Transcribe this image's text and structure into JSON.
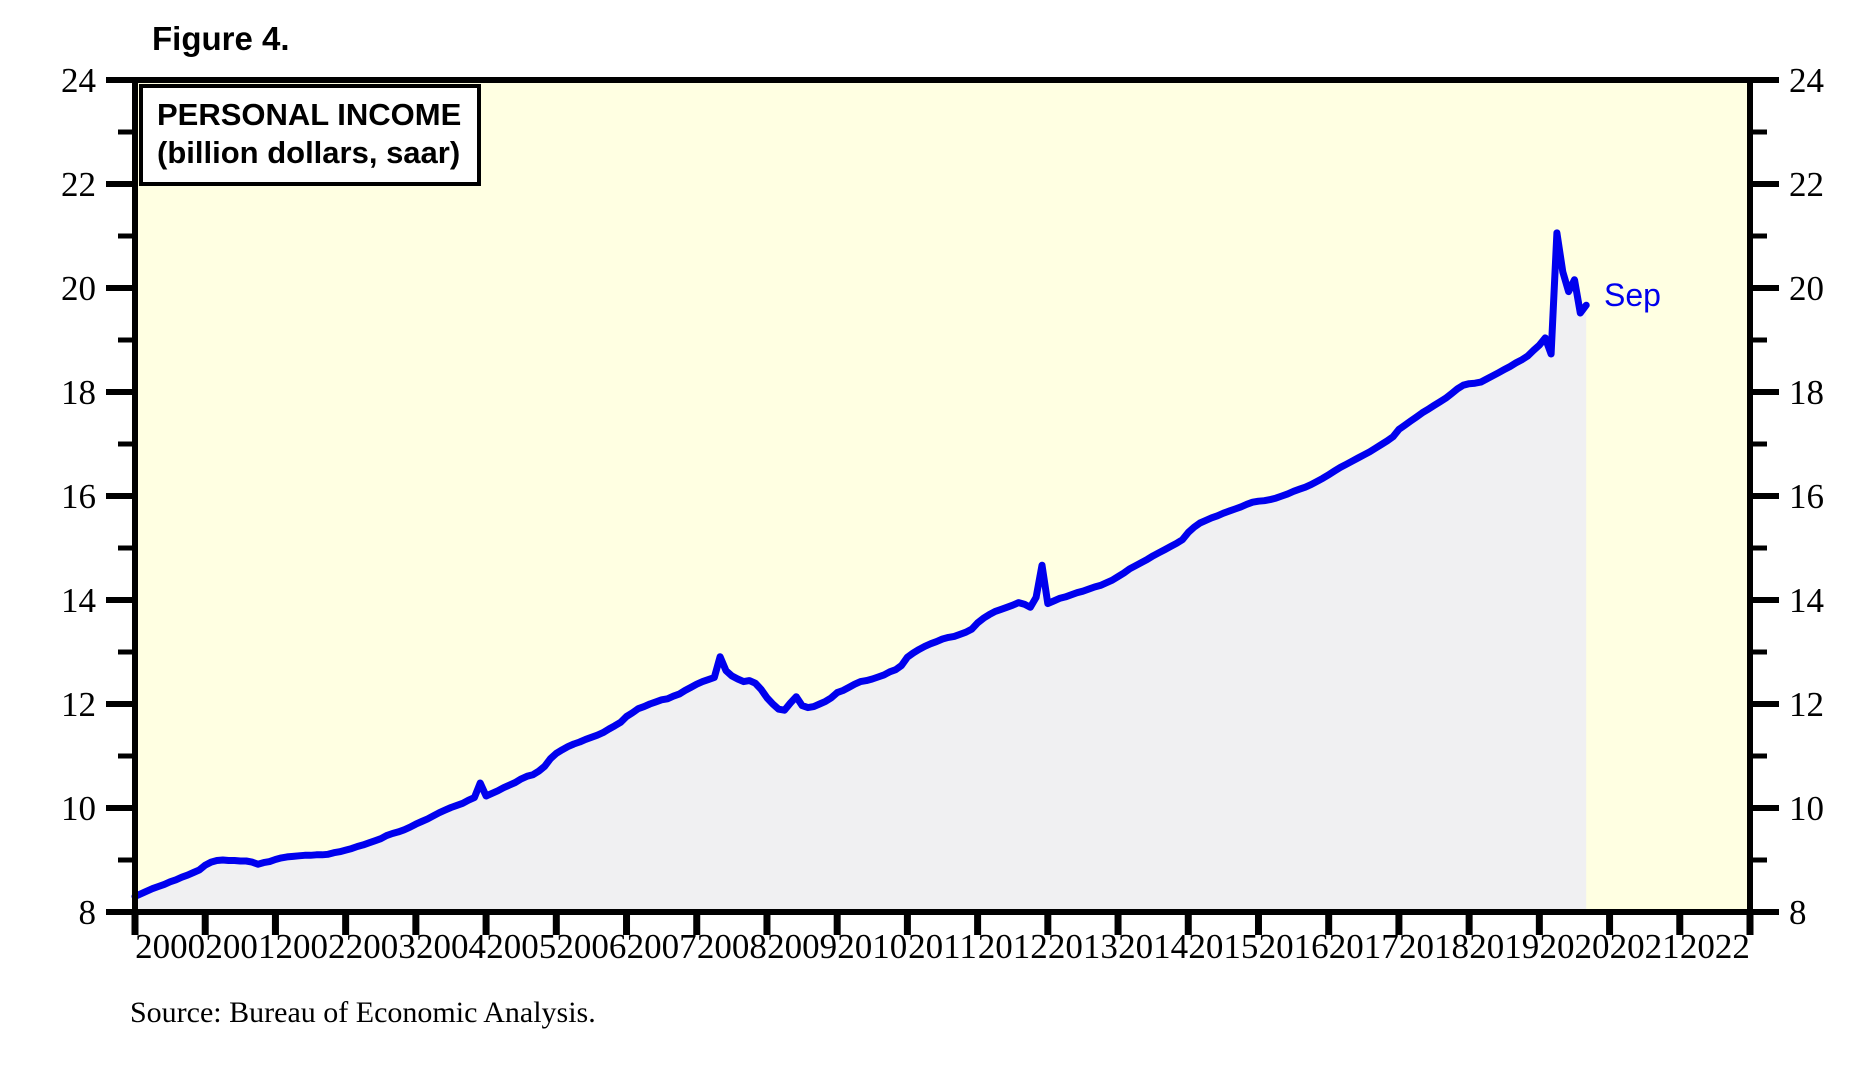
{
  "figure_label": "Figure 4.",
  "source_note": "Source: Bureau of Economic Analysis.",
  "chart_data": {
    "type": "area",
    "title": "PERSONAL INCOME",
    "subtitle": "(billion dollars, saar)",
    "end_label": "Sep",
    "frequency": "monthly",
    "x_start": {
      "year": 2000,
      "month": 1
    },
    "x_end_label_month": "Sep 2020",
    "series": [
      {
        "name": "Personal income",
        "values": [
          8.3,
          8.35,
          8.4,
          8.45,
          8.49,
          8.53,
          8.58,
          8.62,
          8.67,
          8.71,
          8.76,
          8.81,
          8.9,
          8.96,
          8.99,
          9.0,
          8.99,
          8.99,
          8.98,
          8.98,
          8.96,
          8.92,
          8.95,
          8.97,
          9.01,
          9.04,
          9.06,
          9.07,
          9.08,
          9.09,
          9.09,
          9.1,
          9.1,
          9.11,
          9.14,
          9.16,
          9.19,
          9.22,
          9.26,
          9.29,
          9.33,
          9.37,
          9.41,
          9.47,
          9.51,
          9.54,
          9.58,
          9.63,
          9.69,
          9.74,
          9.79,
          9.85,
          9.91,
          9.96,
          10.01,
          10.05,
          10.09,
          10.15,
          10.2,
          10.48,
          10.23,
          10.28,
          10.33,
          10.39,
          10.44,
          10.49,
          10.56,
          10.61,
          10.64,
          10.71,
          10.8,
          10.95,
          11.05,
          11.12,
          11.18,
          11.23,
          11.27,
          11.32,
          11.36,
          11.4,
          11.45,
          11.52,
          11.58,
          11.65,
          11.76,
          11.83,
          11.91,
          11.95,
          12.0,
          12.04,
          12.08,
          12.1,
          12.15,
          12.19,
          12.26,
          12.32,
          12.38,
          12.43,
          12.47,
          12.51,
          12.91,
          12.64,
          12.54,
          12.48,
          12.43,
          12.45,
          12.4,
          12.28,
          12.12,
          12.0,
          11.9,
          11.88,
          12.02,
          12.14,
          11.97,
          11.93,
          11.95,
          12.0,
          12.05,
          12.12,
          12.22,
          12.26,
          12.32,
          12.38,
          12.43,
          12.45,
          12.48,
          12.52,
          12.56,
          12.62,
          12.66,
          12.74,
          12.9,
          12.98,
          13.05,
          13.11,
          13.16,
          13.2,
          13.25,
          13.28,
          13.3,
          13.34,
          13.38,
          13.44,
          13.56,
          13.65,
          13.72,
          13.78,
          13.82,
          13.86,
          13.9,
          13.95,
          13.92,
          13.86,
          14.05,
          14.67,
          13.93,
          13.98,
          14.03,
          14.06,
          14.1,
          14.14,
          14.17,
          14.21,
          14.25,
          14.28,
          14.33,
          14.38,
          14.45,
          14.52,
          14.6,
          14.66,
          14.72,
          14.78,
          14.85,
          14.91,
          14.97,
          15.03,
          15.09,
          15.16,
          15.3,
          15.4,
          15.48,
          15.53,
          15.58,
          15.62,
          15.67,
          15.71,
          15.75,
          15.79,
          15.84,
          15.88,
          15.9,
          15.91,
          15.93,
          15.96,
          16.0,
          16.04,
          16.09,
          16.13,
          16.17,
          16.22,
          16.28,
          16.34,
          16.41,
          16.48,
          16.55,
          16.61,
          16.67,
          16.73,
          16.79,
          16.85,
          16.92,
          16.99,
          17.06,
          17.14,
          17.28,
          17.36,
          17.44,
          17.52,
          17.6,
          17.67,
          17.74,
          17.81,
          17.88,
          17.97,
          18.06,
          18.13,
          18.16,
          18.17,
          18.19,
          18.25,
          18.31,
          18.37,
          18.43,
          18.49,
          18.56,
          18.62,
          18.69,
          18.8,
          18.9,
          19.04,
          18.73,
          21.06,
          20.31,
          19.93,
          20.16,
          19.52,
          19.67
        ]
      }
    ],
    "x_axis": {
      "range": [
        2000,
        2023
      ],
      "year_labels": [
        "2000",
        "2001",
        "2002",
        "2003",
        "2004",
        "2005",
        "2006",
        "2007",
        "2008",
        "2009",
        "2010",
        "2011",
        "2012",
        "2013",
        "2014",
        "2015",
        "2016",
        "2017",
        "2018",
        "2019",
        "2020",
        "2021",
        "2022"
      ]
    },
    "y_axis": {
      "range": [
        8,
        24
      ],
      "major_ticks": [
        8,
        10,
        12,
        14,
        16,
        18,
        20,
        22,
        24
      ],
      "minor_ticks": [
        9,
        11,
        13,
        15,
        17,
        19,
        21,
        23
      ],
      "labels_both_sides": true
    },
    "grid": false,
    "legend_position": "top-left-box",
    "colors": {
      "line": "#0000EE",
      "fill": "#F0F0F2",
      "plot_background": "#FFFFE2",
      "frame": "#000000",
      "text": "#000000",
      "end_label": "#0000EE"
    }
  }
}
